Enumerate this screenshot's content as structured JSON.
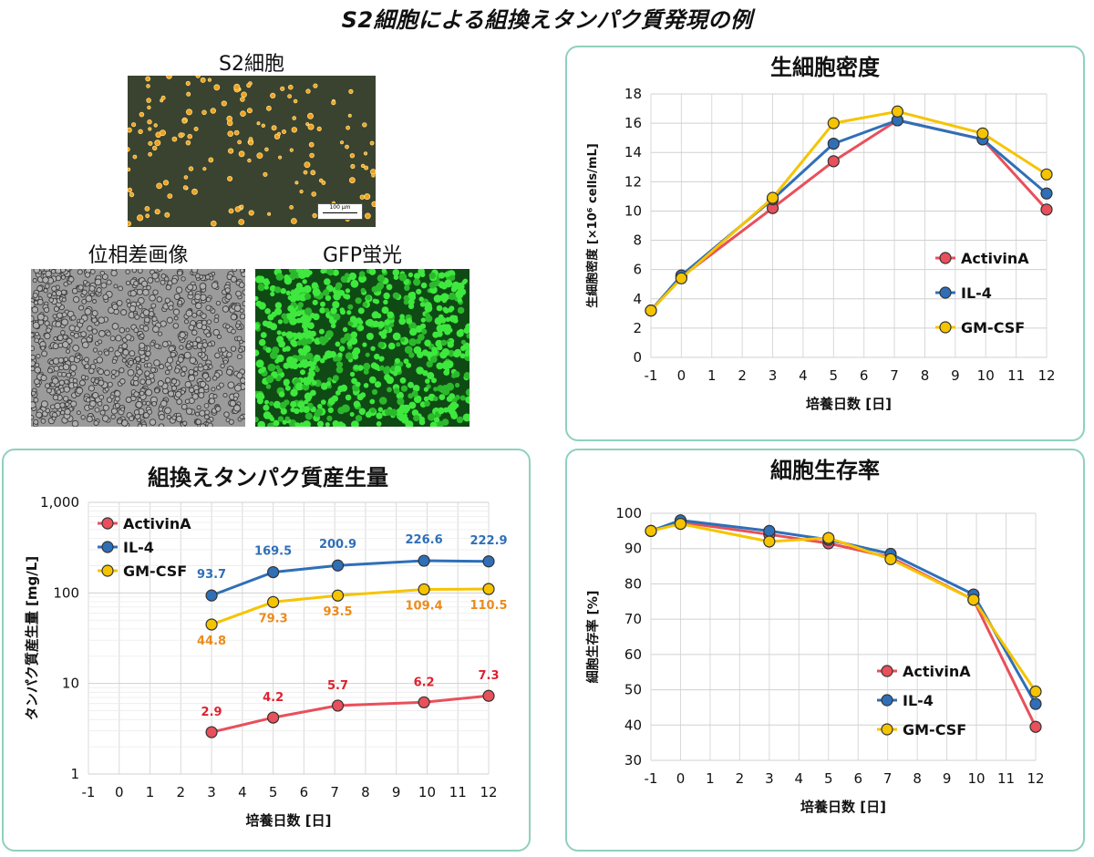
{
  "page_title": "S2細胞による組換えタンパク質発現の例",
  "images": {
    "s2_caption": "S2細胞",
    "phase_caption": "位相差画像",
    "gfp_caption": "GFP蛍光",
    "scale_bar_label": "100 μm"
  },
  "colors": {
    "ActivinA": "#e8505b",
    "IL-4": "#2f6fb8",
    "GM-CSF": "#f5c400",
    "panel_border": "#8fd0bf"
  },
  "chart_data": [
    {
      "id": "production",
      "type": "line",
      "title": "組換えタンパク質産生量",
      "xlabel": "培養日数 [日]",
      "ylabel": "タンパク質産生量 [mg/L]",
      "yscale": "log",
      "ylim": [
        1,
        1000
      ],
      "xlim": [
        -1,
        12
      ],
      "xticks": [
        "-1",
        "0",
        "1",
        "2",
        "3",
        "4",
        "5",
        "6",
        "7",
        "8",
        "9",
        "10",
        "11",
        "12"
      ],
      "yticks": [
        "1",
        "10",
        "100",
        "1,000"
      ],
      "legend": "top-left",
      "series": [
        {
          "name": "ActivinA",
          "x": [
            3,
            5,
            7.1,
            9.9,
            12
          ],
          "values": [
            2.9,
            4.2,
            5.7,
            6.2,
            7.3
          ],
          "labels": [
            "2.9",
            "4.2",
            "5.7",
            "6.2",
            "7.3"
          ]
        },
        {
          "name": "IL-4",
          "x": [
            3,
            5,
            7.1,
            9.9,
            12
          ],
          "values": [
            93.7,
            169.5,
            200.9,
            226.6,
            222.9
          ],
          "labels": [
            "93.7",
            "169.5",
            "200.9",
            "226.6",
            "222.9"
          ]
        },
        {
          "name": "GM-CSF",
          "x": [
            3,
            5,
            7.1,
            9.9,
            12
          ],
          "values": [
            44.8,
            79.3,
            93.5,
            109.4,
            110.5
          ],
          "labels": [
            "44.8",
            "79.3",
            "93.5",
            "109.4",
            "110.5"
          ]
        }
      ]
    },
    {
      "id": "density",
      "type": "line",
      "title": "生細胞密度",
      "xlabel": "培養日数 [日]",
      "ylabel": "生細胞密度 [×10⁶ cells/mL]",
      "ylim": [
        0,
        18
      ],
      "xlim": [
        -1,
        12
      ],
      "xticks": [
        "-1",
        "0",
        "1",
        "2",
        "3",
        "4",
        "5",
        "6",
        "7",
        "8",
        "9",
        "10",
        "11",
        "12"
      ],
      "yticks": [
        "0",
        "2",
        "4",
        "6",
        "8",
        "10",
        "12",
        "14",
        "16",
        "18"
      ],
      "legend": "right",
      "series": [
        {
          "name": "ActivinA",
          "x": [
            -1,
            0,
            3,
            5,
            7.1,
            9.9,
            12
          ],
          "values": [
            3.2,
            5.5,
            10.2,
            13.4,
            16.2,
            14.9,
            10.1
          ]
        },
        {
          "name": "IL-4",
          "x": [
            -1,
            0,
            3,
            5,
            7.1,
            9.9,
            12
          ],
          "values": [
            3.2,
            5.6,
            10.8,
            14.6,
            16.2,
            14.9,
            11.2
          ]
        },
        {
          "name": "GM-CSF",
          "x": [
            -1,
            0,
            3,
            5,
            7.1,
            9.9,
            12
          ],
          "values": [
            3.2,
            5.4,
            10.9,
            16.0,
            16.8,
            15.3,
            12.5
          ]
        }
      ]
    },
    {
      "id": "viability",
      "type": "line",
      "title": "細胞生存率",
      "xlabel": "培養日数 [日]",
      "ylabel": "細胞生存率 [%]",
      "ylim": [
        30,
        100
      ],
      "xlim": [
        -1,
        12
      ],
      "xticks": [
        "-1",
        "0",
        "1",
        "2",
        "3",
        "4",
        "5",
        "6",
        "7",
        "8",
        "9",
        "10",
        "11",
        "12"
      ],
      "yticks": [
        "30",
        "40",
        "50",
        "60",
        "70",
        "80",
        "90",
        "100"
      ],
      "legend": "bottom-right",
      "series": [
        {
          "name": "ActivinA",
          "x": [
            -1,
            0,
            3,
            5,
            7.1,
            9.9,
            12
          ],
          "values": [
            95,
            97.5,
            94,
            91.5,
            87.5,
            75.5,
            39.5
          ]
        },
        {
          "name": "IL-4",
          "x": [
            -1,
            0,
            3,
            5,
            7.1,
            9.9,
            12
          ],
          "values": [
            95,
            98,
            95,
            92.5,
            88.5,
            77,
            46
          ]
        },
        {
          "name": "GM-CSF",
          "x": [
            -1,
            0,
            3,
            5,
            7.1,
            9.9,
            12
          ],
          "values": [
            95,
            97,
            92,
            93,
            87,
            75.5,
            49.5
          ]
        }
      ]
    }
  ]
}
